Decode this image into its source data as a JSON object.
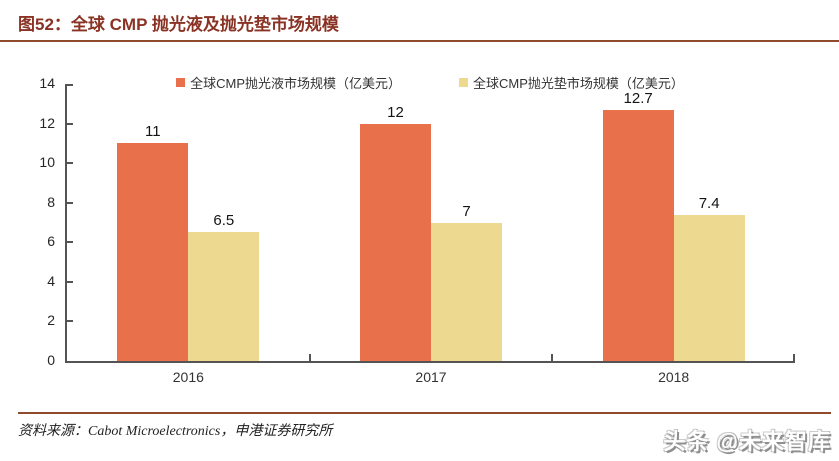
{
  "header": {
    "title": "图52：全球 CMP 抛光液及抛光垫市场规模"
  },
  "chart_data": {
    "type": "bar",
    "title": "全球 CMP 抛光液及抛光垫市场规模",
    "categories": [
      "2016",
      "2017",
      "2018"
    ],
    "series": [
      {
        "name": "全球CMP抛光液市场规模（亿美元）",
        "values": [
          11,
          12,
          12.7
        ],
        "labels": [
          "11",
          "12",
          "12.7"
        ],
        "color": "#E8704A"
      },
      {
        "name": "全球CMP抛光垫市场规模（亿美元）",
        "values": [
          6.5,
          7,
          7.4
        ],
        "labels": [
          "6.5",
          "7",
          "7.4"
        ],
        "color": "#EDD98F"
      }
    ],
    "xlabel": "",
    "ylabel": "",
    "ylim": [
      0,
      14
    ],
    "y_ticks": [
      0,
      2,
      4,
      6,
      8,
      10,
      12,
      14
    ],
    "grid": false,
    "legend_position": "top",
    "value_labels": true
  },
  "footer": {
    "source": "资料来源：Cabot Microelectronics，申港证券研究所",
    "watermark": "头条 @未来智库"
  },
  "colors": {
    "title_text": "#8A3324",
    "rule": "#8F4A2B",
    "axis": "#545454",
    "bar_slurry": "#E8704A",
    "bar_pad": "#EDD98F"
  }
}
